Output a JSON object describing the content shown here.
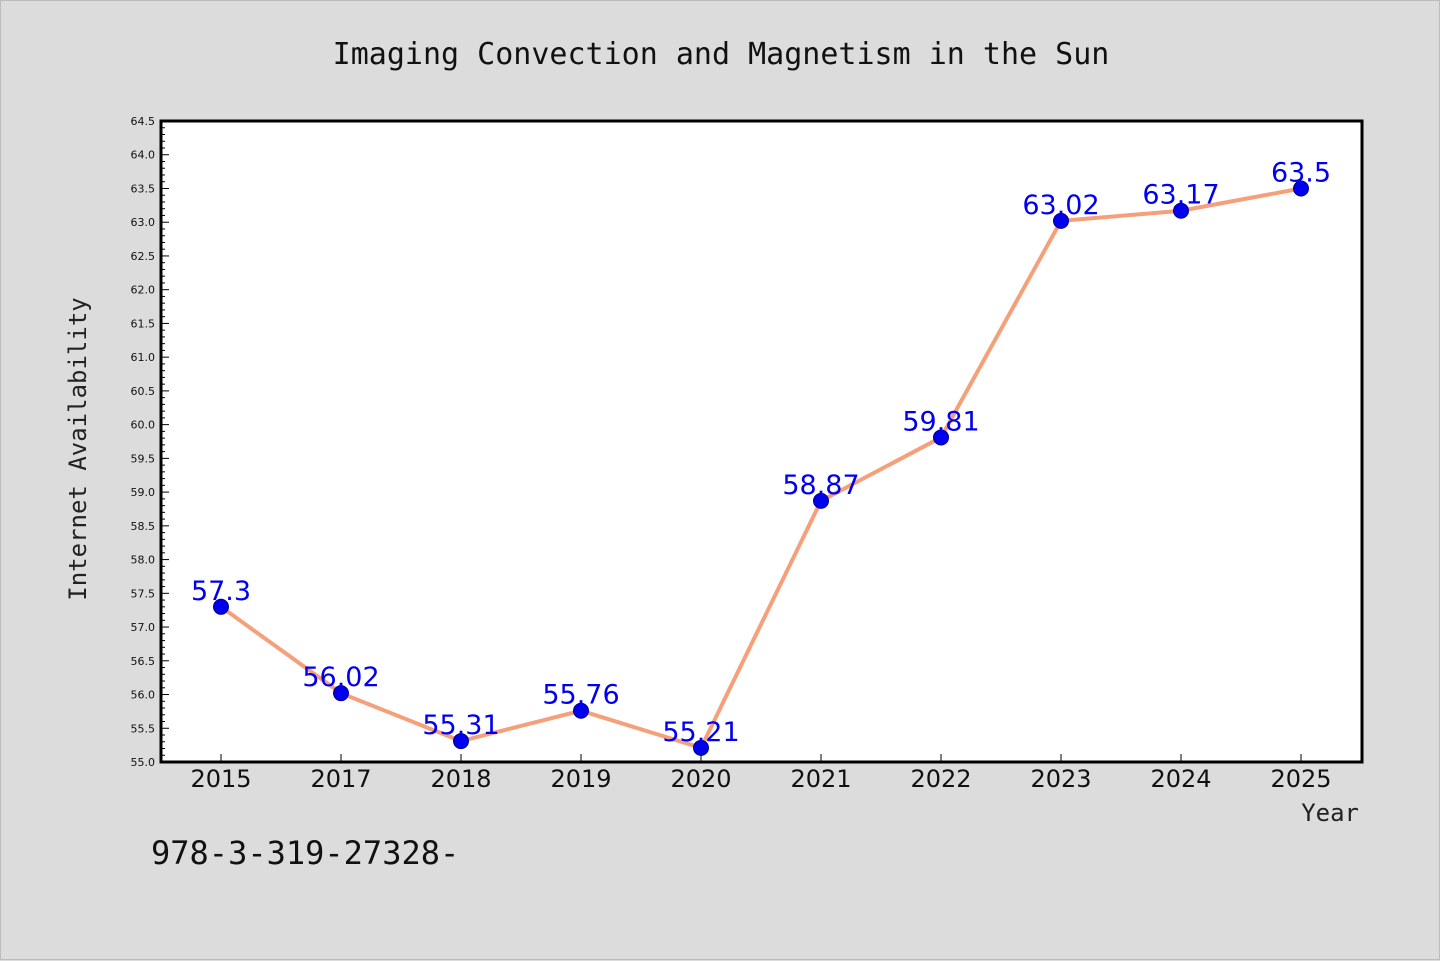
{
  "chart_data": {
    "type": "line",
    "title": "Imaging Convection and Magnetism in the Sun",
    "xlabel": "Year",
    "ylabel": "Internet Availability",
    "categories": [
      "2015",
      "2017",
      "2018",
      "2019",
      "2020",
      "2021",
      "2022",
      "2023",
      "2024",
      "2025"
    ],
    "series": [
      {
        "values": [
          57.3,
          56.02,
          55.31,
          55.76,
          55.21,
          58.87,
          59.81,
          63.02,
          63.17,
          63.5
        ],
        "labels": [
          "57.3",
          "56.02",
          "55.31",
          "55.76",
          "55.21",
          "58.87",
          "59.81",
          "63.02",
          "63.17",
          "63.5"
        ],
        "line_color": "#f5a07a",
        "marker_color": "#0000ee"
      }
    ],
    "ylim": [
      55.0,
      64.5
    ],
    "ytick_step": 0.5,
    "grid": false,
    "legend": "none",
    "data_label_color": "#0000ee"
  },
  "footnote": "978-3-319-27328-"
}
